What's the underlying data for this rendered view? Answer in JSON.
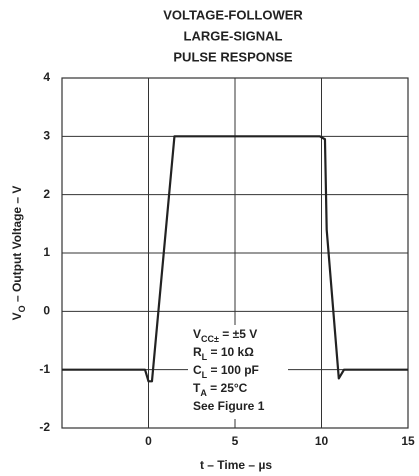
{
  "chart_data": {
    "type": "line",
    "title": [
      "VOLTAGE-FOLLOWER",
      "LARGE-SIGNAL",
      "PULSE RESPONSE"
    ],
    "y_label": {
      "main": "V",
      "sub": "O",
      "rest": " – Output Voltage – V"
    },
    "x_label": "t – Time – µs",
    "x": [
      -5,
      -0.2,
      0,
      0.2,
      1.5,
      9.9,
      10.2,
      10.3,
      11.0,
      11.3,
      15
    ],
    "values": [
      -1,
      -1,
      -1.2,
      -1.2,
      3,
      3,
      2.95,
      1.4,
      -1.15,
      -1,
      -1
    ],
    "color": "#222222",
    "xlim": [
      -5,
      15
    ],
    "xticks": [
      0,
      5,
      10,
      15
    ],
    "ylim": [
      -2,
      4
    ],
    "yticks": [
      -2,
      -1,
      0,
      1,
      2,
      3,
      4
    ],
    "grid": true,
    "annotation": [
      {
        "main": "V",
        "sub": "CC±",
        "rest": " = ±5 V"
      },
      {
        "main": "R",
        "sub": "L",
        "rest": " = 10 kΩ"
      },
      {
        "main": "C",
        "sub": "L",
        "rest": " = 100 pF"
      },
      {
        "main": "T",
        "sub": "A",
        "rest": " = 25°C"
      },
      {
        "main": "See Figure 1"
      }
    ]
  }
}
